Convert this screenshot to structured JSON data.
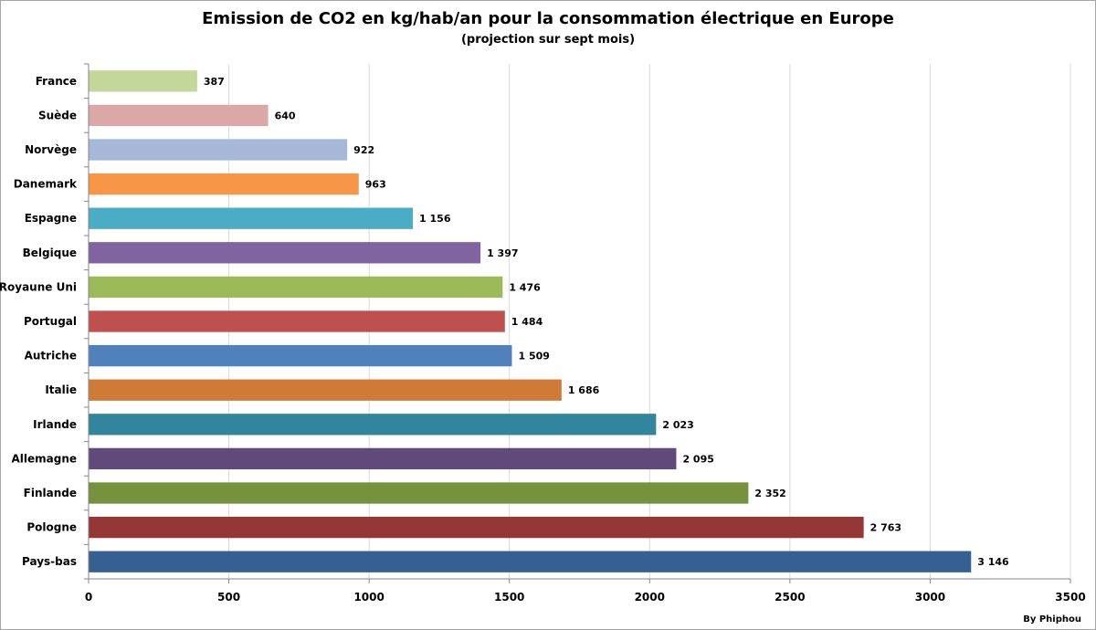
{
  "chart_data": {
    "type": "bar",
    "orientation": "horizontal",
    "title": "Emission de CO2 en kg/hab/an pour la consommation électrique en Europe",
    "subtitle": "(projection sur sept mois)",
    "categories": [
      "France",
      "Suède",
      "Norvège",
      "Danemark",
      "Espagne",
      "Belgique",
      "Royaune Uni",
      "Portugal",
      "Autriche",
      "Italie",
      "Irlande",
      "Allemagne",
      "Finlande",
      "Pologne",
      "Pays-bas"
    ],
    "values": [
      387,
      640,
      922,
      963,
      1156,
      1397,
      1476,
      1484,
      1509,
      1686,
      2023,
      2095,
      2352,
      2763,
      3146
    ],
    "value_labels": [
      "387",
      "640",
      "922",
      "963",
      "1 156",
      "1 397",
      "1 476",
      "1 484",
      "1 509",
      "1 686",
      "2 023",
      "2 095",
      "2 352",
      "2 763",
      "3 146"
    ],
    "colors": [
      "#c4d79b",
      "#d9a8a7",
      "#a6b8d8",
      "#f79646",
      "#4bacc6",
      "#8064a2",
      "#9bbb59",
      "#c0504d",
      "#4f81bd",
      "#d07a38",
      "#31859c",
      "#604a7b",
      "#76923c",
      "#953735",
      "#376092"
    ],
    "xlim": [
      0,
      3500
    ],
    "xticks": [
      0,
      500,
      1000,
      1500,
      2000,
      2500,
      3000,
      3500
    ],
    "grid": true
  },
  "credit": "By Phiphou"
}
